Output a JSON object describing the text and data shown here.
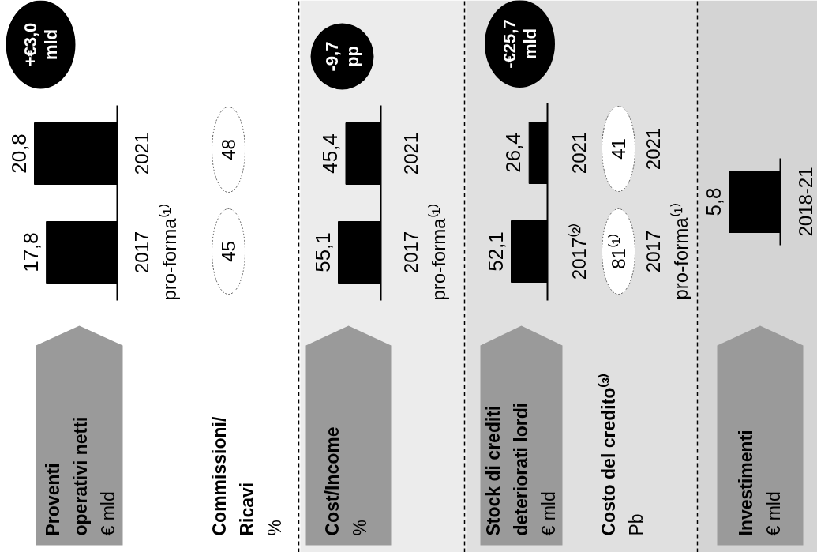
{
  "chart_data": [
    {
      "type": "bar",
      "orientation": "horizontal",
      "title": "Proventi\noperativi netti",
      "subtitle": "€ mld",
      "categories": [
        "2021",
        "2017\npro-forma⁽¹⁾"
      ],
      "values": [
        20.8,
        17.8
      ],
      "value_labels": [
        "20,8",
        "17,8"
      ],
      "color": "#000000",
      "annotations": [
        "+€3,0\nmld"
      ]
    },
    {
      "type": "other",
      "title": "Commissioni/\nRicavi",
      "subtitle": "%",
      "values": [
        48,
        45
      ],
      "data_labels": true,
      "color": "#ffffff"
    },
    {
      "type": "bar",
      "orientation": "horizontal",
      "title": "Cost/Income",
      "subtitle": "%",
      "categories": [
        "2021",
        "2017\npro-forma⁽¹⁾"
      ],
      "values": [
        45.4,
        55.1
      ],
      "value_labels": [
        "45,4",
        "55,1"
      ],
      "color": "#000000",
      "annotations": [
        "-9,7\npp"
      ]
    },
    {
      "type": "bar",
      "orientation": "horizontal",
      "title": "Stock di crediti\ndeteriorati lordi",
      "subtitle": "€ mld",
      "categories": [
        "2021",
        "2017⁽²⁾"
      ],
      "values": [
        26.4,
        52.1
      ],
      "value_labels": [
        "26,4",
        "52,1"
      ],
      "color": "#000000",
      "annotations": [
        "-€25,7\nmld"
      ]
    },
    {
      "type": "other",
      "title": "Costo del credito⁽³⁾",
      "subtitle": "Pb",
      "categories": [
        "2021",
        "2017\npro-forma⁽¹⁾"
      ],
      "values": [
        41,
        81
      ],
      "value_labels": [
        "41",
        "81⁽¹⁾"
      ],
      "color": "#ffffff"
    },
    {
      "type": "bar",
      "orientation": "horizontal",
      "title": "Investimenti",
      "subtitle": "€ mld",
      "categories": [
        "2018-21"
      ],
      "values": [
        5.8
      ],
      "value_labels": [
        "5,8"
      ],
      "color": "#000000"
    }
  ]
}
